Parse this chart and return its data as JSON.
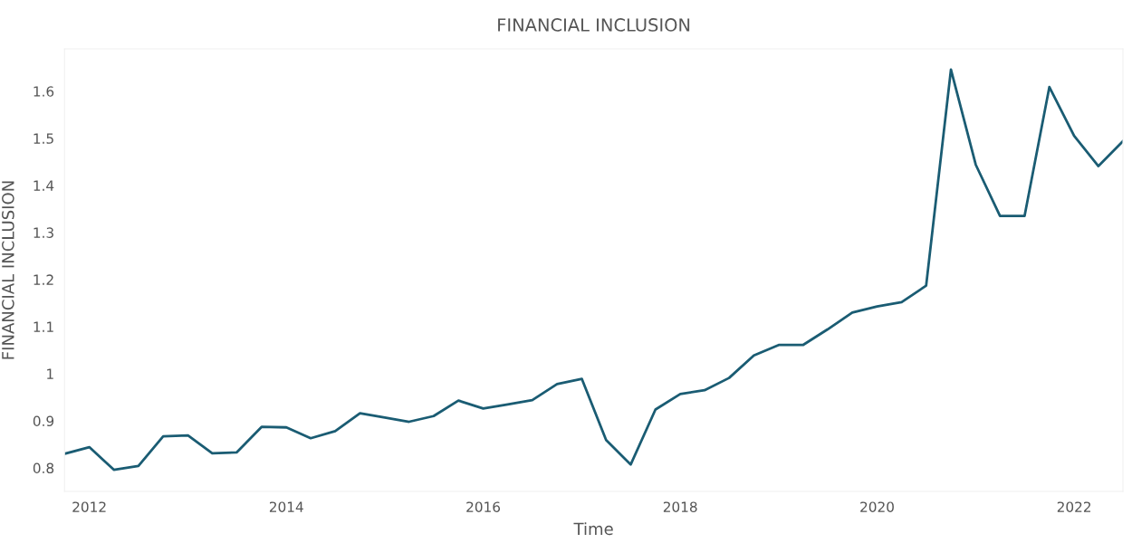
{
  "chart_data": {
    "type": "line",
    "title": "FINANCIAL INCLUSION",
    "xlabel": "Time",
    "ylabel": "FINANCIAL INCLUSION",
    "x": [
      "2011-10",
      "2012-01",
      "2012-04",
      "2012-07",
      "2012-10",
      "2013-01",
      "2013-04",
      "2013-07",
      "2013-10",
      "2014-01",
      "2014-04",
      "2014-07",
      "2014-10",
      "2015-01",
      "2015-04",
      "2015-07",
      "2015-10",
      "2016-01",
      "2016-04",
      "2016-07",
      "2016-10",
      "2017-01",
      "2017-04",
      "2017-07",
      "2017-10",
      "2018-01",
      "2018-04",
      "2018-07",
      "2018-10",
      "2019-01",
      "2019-04",
      "2019-07",
      "2019-10",
      "2020-01",
      "2020-04",
      "2020-07",
      "2020-10",
      "2021-01",
      "2021-04",
      "2021-07",
      "2021-10",
      "2022-01",
      "2022-04",
      "2022-07"
    ],
    "series": [
      {
        "color": "#1a5c73",
        "values": [
          0.83,
          0.844,
          0.796,
          0.804,
          0.867,
          0.869,
          0.831,
          0.833,
          0.887,
          0.886,
          0.863,
          0.878,
          0.916,
          0.907,
          0.898,
          0.91,
          0.943,
          0.926,
          0.935,
          0.944,
          0.978,
          0.989,
          0.859,
          0.807,
          0.924,
          0.957,
          0.965,
          0.991,
          1.039,
          1.061,
          1.061,
          1.094,
          1.13,
          1.143,
          1.152,
          1.187,
          1.646,
          1.444,
          1.335,
          1.335,
          1.609,
          1.505,
          1.441,
          1.494
        ]
      }
    ],
    "xlim": [
      "2011-10",
      "2022-07"
    ],
    "xticks": [
      {
        "value": "2012-01",
        "label": "2012"
      },
      {
        "value": "2014-01",
        "label": "2014"
      },
      {
        "value": "2016-01",
        "label": "2016"
      },
      {
        "value": "2018-01",
        "label": "2018"
      },
      {
        "value": "2020-01",
        "label": "2020"
      },
      {
        "value": "2022-01",
        "label": "2022"
      }
    ],
    "ylim": [
      0.75,
      1.69
    ],
    "yticks": [
      0.8,
      0.9,
      {
        "value": 1.0,
        "label": "1"
      },
      1.1,
      1.2,
      1.3,
      1.4,
      1.5,
      1.6
    ],
    "grid": false,
    "marker": "none",
    "line_style": "solid"
  }
}
